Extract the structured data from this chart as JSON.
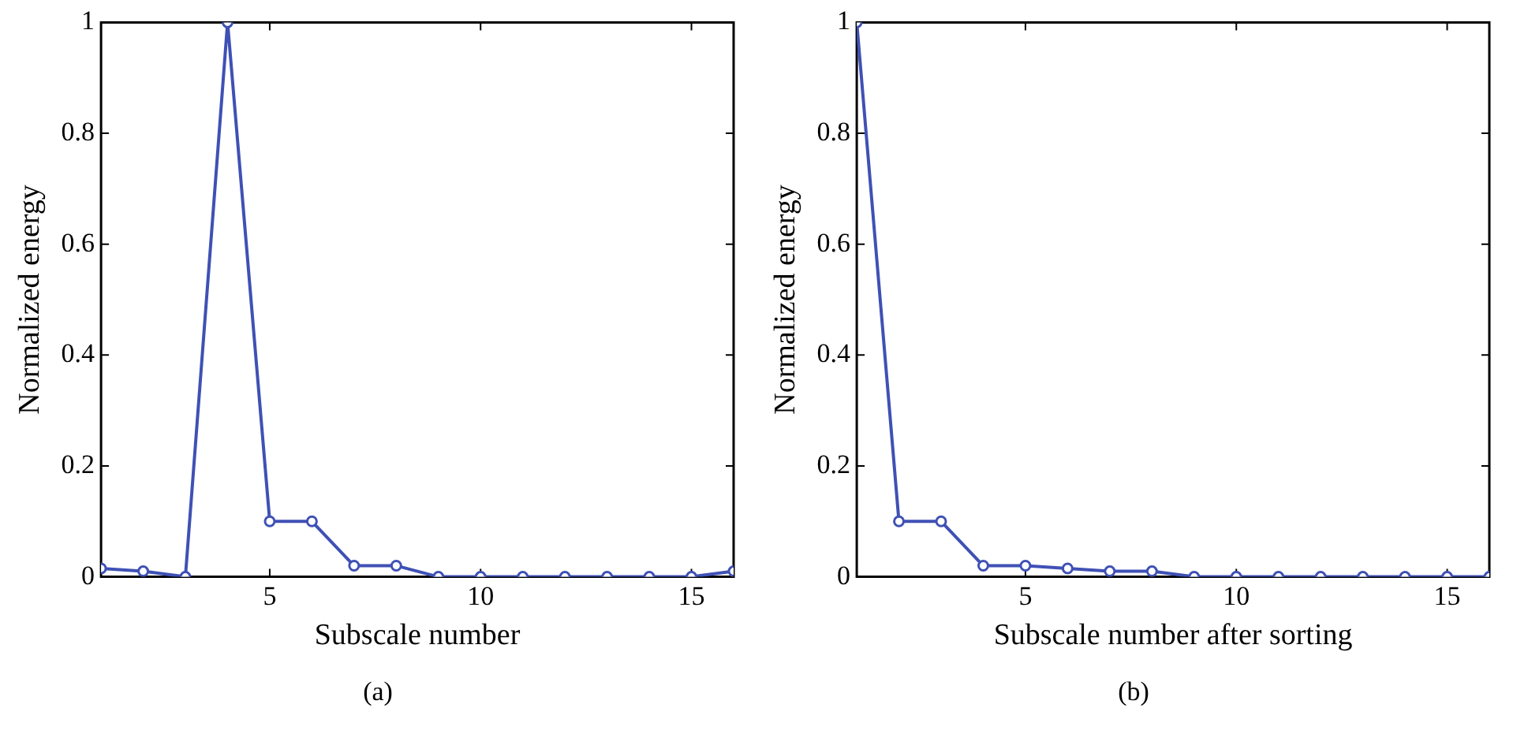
{
  "chart_data": [
    {
      "type": "line",
      "xlabel": "Subscale number",
      "ylabel": "Normalized energy",
      "annotations": [
        "(a)"
      ],
      "x": [
        1,
        2,
        3,
        4,
        5,
        6,
        7,
        8,
        9,
        10,
        11,
        12,
        13,
        14,
        15,
        16
      ],
      "series": [
        {
          "color": "#3f51b5",
          "values": [
            0.015,
            0.01,
            0.0,
            1.0,
            0.1,
            0.1,
            0.02,
            0.02,
            0.0,
            0.0,
            0.0,
            0.0,
            0.0,
            0.0,
            0.0,
            0.01
          ]
        }
      ],
      "xlim": [
        1,
        16
      ],
      "xticks": [
        5,
        10,
        15
      ],
      "ylim": [
        0,
        1
      ],
      "yticks": [
        0,
        0.2,
        0.4,
        0.6,
        0.8,
        1
      ],
      "grid": false,
      "legend": false,
      "marker": "circle",
      "line_style": "solid"
    },
    {
      "type": "line",
      "xlabel": "Subscale number after sorting",
      "ylabel": "Normalized energy",
      "annotations": [
        "(b)"
      ],
      "x": [
        1,
        2,
        3,
        4,
        5,
        6,
        7,
        8,
        9,
        10,
        11,
        12,
        13,
        14,
        15,
        16
      ],
      "series": [
        {
          "color": "#3f51b5",
          "values": [
            1.0,
            0.1,
            0.1,
            0.02,
            0.02,
            0.015,
            0.01,
            0.01,
            0.0,
            0.0,
            0.0,
            0.0,
            0.0,
            0.0,
            0.0,
            0.0
          ]
        }
      ],
      "xlim": [
        1,
        16
      ],
      "xticks": [
        5,
        10,
        15
      ],
      "ylim": [
        0,
        1
      ],
      "yticks": [
        0,
        0.2,
        0.4,
        0.6,
        0.8,
        1
      ],
      "grid": false,
      "legend": false,
      "marker": "circle",
      "line_style": "solid"
    }
  ]
}
